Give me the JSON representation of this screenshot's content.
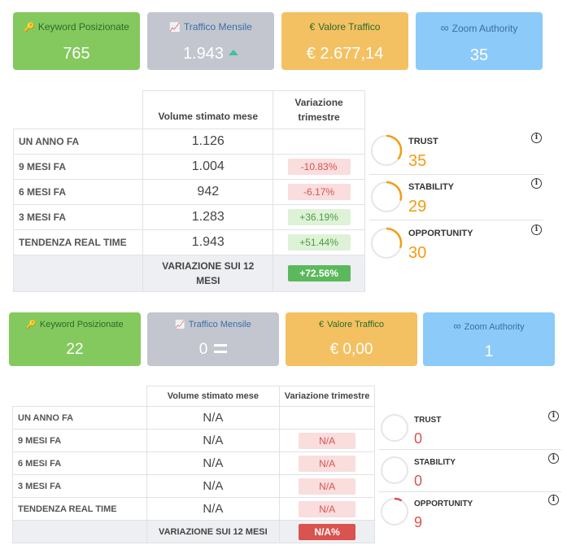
{
  "section1": {
    "cards": [
      {
        "icon": "key-icon",
        "glyph": "🔑",
        "title": "Keyword Posizionate",
        "value": "765"
      },
      {
        "icon": "chart-icon",
        "glyph": "📈",
        "title": "Traffico Mensile",
        "value": "1.943"
      },
      {
        "icon": "euro-icon",
        "glyph": "€",
        "title": "Valore Traffico",
        "value": "€ 2.677,14"
      },
      {
        "icon": "infinity-icon",
        "glyph": "∞",
        "title": "Zoom Authority",
        "value": "35"
      }
    ],
    "table": {
      "col_volume": "Volume stimato mese",
      "col_variation": "Variazione trimestre",
      "rows": [
        {
          "label": "UN ANNO FA",
          "volume": "1.126",
          "variation": ""
        },
        {
          "label": "9 MESI FA",
          "volume": "1.004",
          "variation": "-10.83%"
        },
        {
          "label": "6 MESI FA",
          "volume": "942",
          "variation": "-6.17%"
        },
        {
          "label": "3 MESI FA",
          "volume": "1.283",
          "variation": "+36.19%"
        },
        {
          "label": "TENDENZA REAL TIME",
          "volume": "1.943",
          "variation": "+51.44%"
        }
      ],
      "footer_label": "VARIAZIONE SUI 12 MESI",
      "footer_value": "+72.56%"
    },
    "metrics": [
      {
        "name": "TRUST",
        "value": "35",
        "progress": 0.35,
        "color": "#f39c12"
      },
      {
        "name": "STABILITY",
        "value": "29",
        "progress": 0.29,
        "color": "#f39c12"
      },
      {
        "name": "OPPORTUNITY",
        "value": "30",
        "progress": 0.3,
        "color": "#f39c12"
      }
    ]
  },
  "section2": {
    "cards": [
      {
        "icon": "key-icon",
        "glyph": "🔑",
        "title": "Keyword Posizionate",
        "value": "22"
      },
      {
        "icon": "chart-icon",
        "glyph": "📈",
        "title": "Traffico Mensile",
        "value": "0"
      },
      {
        "icon": "euro-icon",
        "glyph": "€",
        "title": "Valore Traffico",
        "value": "€ 0,00"
      },
      {
        "icon": "infinity-icon",
        "glyph": "∞",
        "title": "Zoom Authority",
        "value": "1"
      }
    ],
    "table": {
      "col_volume": "Volume stimato mese",
      "col_variation": "Variazione trimestre",
      "rows": [
        {
          "label": "UN ANNO FA",
          "volume": "N/A",
          "variation": ""
        },
        {
          "label": "9 MESI FA",
          "volume": "N/A",
          "variation": "N/A"
        },
        {
          "label": "6 MESI FA",
          "volume": "N/A",
          "variation": "N/A"
        },
        {
          "label": "3 MESI FA",
          "volume": "N/A",
          "variation": "N/A"
        },
        {
          "label": "TENDENZA REAL TIME",
          "volume": "N/A",
          "variation": "N/A"
        }
      ],
      "footer_label": "VARIAZIONE SUI 12 MESI",
      "footer_value": "N/A%"
    },
    "metrics": [
      {
        "name": "TRUST",
        "value": "0",
        "progress": 0,
        "color": "#d9534f"
      },
      {
        "name": "STABILITY",
        "value": "0",
        "progress": 0,
        "color": "#d9534f"
      },
      {
        "name": "OPPORTUNITY",
        "value": "9",
        "progress": 0.09,
        "color": "#d9534f"
      }
    ]
  },
  "colors": {
    "green": "#84c95e",
    "grey": "#c3c6cf",
    "orange": "#f4c162",
    "blue": "#8ccafa",
    "metric_orange": "#f39c12",
    "metric_red": "#d9534f"
  }
}
